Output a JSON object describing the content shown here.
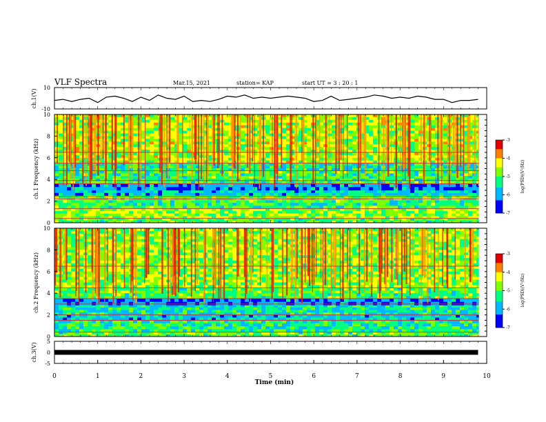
{
  "header": {
    "title": "VLF Spectra",
    "date": "Mar.15, 2021",
    "station": "station= KAP",
    "start": "start  UT  =   3  : 20 : 1"
  },
  "chart_data": [
    {
      "type": "line",
      "panel": "ch1-waveform",
      "ylabel": "ch.1(V)",
      "ylim": [
        -10,
        10
      ],
      "yticks": [
        "10",
        "-10"
      ],
      "xlim": [
        0,
        10
      ],
      "series": [
        {
          "color": "#000000",
          "x": [
            0,
            0.2,
            0.4,
            0.6,
            0.8,
            1.0,
            1.2,
            1.4,
            1.6,
            1.8,
            2.0,
            2.2,
            2.4,
            2.6,
            2.8,
            3.0,
            3.2,
            3.4,
            3.6,
            3.8,
            4.0,
            4.2,
            4.4,
            4.6,
            4.8,
            5.0,
            5.2,
            5.4,
            5.6,
            5.8,
            6.0,
            6.2,
            6.4,
            6.6,
            6.8,
            7.0,
            7.2,
            7.4,
            7.6,
            7.8,
            8.0,
            8.2,
            8.4,
            8.6,
            8.8,
            9.0,
            9.2,
            9.4,
            9.6,
            9.8
          ],
          "values": [
            -2,
            -1,
            -3,
            -1,
            0,
            -4,
            1,
            2,
            0,
            -3,
            1,
            -2,
            3,
            0,
            -1,
            2,
            -3,
            -2,
            -3,
            -1,
            2,
            1,
            3,
            0,
            1,
            0,
            1,
            2,
            1,
            0,
            -3,
            -2,
            2,
            -2,
            -1,
            0,
            1,
            3,
            2,
            0,
            1,
            0,
            2,
            1,
            -1,
            -1,
            -4,
            -2,
            -2,
            -1
          ]
        }
      ]
    },
    {
      "type": "heatmap",
      "panel": "ch1-spectrogram",
      "ylabel": "ch.1  Frequency (kHz)",
      "ylim": [
        0,
        10
      ],
      "yticks": [
        "0",
        "2",
        "4",
        "6",
        "8",
        "10"
      ],
      "xlim": [
        0,
        10
      ],
      "z_range": [
        -7,
        -3
      ],
      "colorbar_label": "log(PSD)(V²/Hz)",
      "colorbar_ticks": [
        "-3",
        "-4",
        "-5",
        "-6",
        "-7"
      ],
      "bands": [
        {
          "f0": 0.0,
          "f1": 0.4,
          "level": -5.0
        },
        {
          "f0": 0.4,
          "f1": 1.3,
          "level": -4.7
        },
        {
          "f0": 1.3,
          "f1": 2.1,
          "level": -5.1
        },
        {
          "f0": 2.1,
          "f1": 2.5,
          "level": -4.9
        },
        {
          "f0": 2.5,
          "f1": 3.0,
          "level": -5.7
        },
        {
          "f0": 3.0,
          "f1": 3.6,
          "level": -6.1
        },
        {
          "f0": 3.6,
          "f1": 4.8,
          "level": -5.1
        },
        {
          "f0": 4.8,
          "f1": 5.5,
          "level": -5.4
        },
        {
          "f0": 5.5,
          "f1": 10.0,
          "level": -4.6
        }
      ],
      "lines_khz": [
        0.4,
        1.3,
        2.2,
        2.4,
        3.6,
        3.9,
        4.8,
        5.5,
        6.5
      ]
    },
    {
      "type": "heatmap",
      "panel": "ch2-spectrogram",
      "ylabel": "ch.2  Frequency (kHz)",
      "ylim": [
        0,
        10
      ],
      "yticks": [
        "0",
        "2",
        "4",
        "6",
        "8",
        "10"
      ],
      "xlim": [
        0,
        10
      ],
      "z_range": [
        -7,
        -3
      ],
      "colorbar_label": "log(PSD)(V²/Hz)",
      "colorbar_ticks": [
        "-3",
        "-4",
        "-5",
        "-6",
        "-7"
      ],
      "bands": [
        {
          "f0": 0.0,
          "f1": 0.4,
          "level": -5.0
        },
        {
          "f0": 0.4,
          "f1": 1.5,
          "level": -5.3
        },
        {
          "f0": 1.5,
          "f1": 2.0,
          "level": -5.7
        },
        {
          "f0": 2.0,
          "f1": 2.9,
          "level": -5.5
        },
        {
          "f0": 2.9,
          "f1": 3.5,
          "level": -6.2
        },
        {
          "f0": 3.5,
          "f1": 4.5,
          "level": -5.0
        },
        {
          "f0": 4.5,
          "f1": 10.0,
          "level": -4.7
        }
      ],
      "lines_khz": [
        0.4,
        1.5,
        2.0,
        3.0,
        3.5,
        4.5,
        6.5
      ]
    },
    {
      "type": "line",
      "panel": "ch3-waveform",
      "ylabel": "ch.3(V)",
      "ylim": [
        -5,
        5
      ],
      "yticks": [
        "5",
        "0",
        "-5"
      ],
      "xlim": [
        0,
        10
      ],
      "xlabel": "Time  (min)",
      "xticks": [
        "0",
        "1",
        "2",
        "3",
        "4",
        "5",
        "6",
        "7",
        "8",
        "9",
        "10"
      ],
      "series": [
        {
          "color": "#000000",
          "x": [
            0,
            9.8
          ],
          "values": [
            0,
            0
          ]
        }
      ]
    }
  ]
}
